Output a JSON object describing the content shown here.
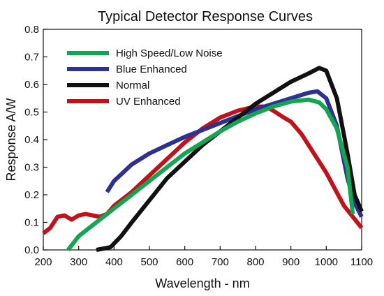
{
  "chart_data": {
    "type": "line",
    "title": "Typical Detector Response Curves",
    "xlabel": "Wavelength - nm",
    "ylabel": "Response A/W",
    "xlim": [
      200,
      1100
    ],
    "ylim": [
      0,
      0.8
    ],
    "xticks": [
      200,
      300,
      400,
      500,
      600,
      700,
      800,
      900,
      1000,
      1100
    ],
    "yticks": [
      "0.0",
      "0.1",
      "0.2",
      "0.3",
      "0.4",
      "0.5",
      "0.6",
      "0.7",
      "0.8"
    ],
    "grid": false,
    "legend_position": "top-left",
    "series": [
      {
        "name": "High Speed/Low Noise",
        "color": "#13a552",
        "points": [
          [
            270,
            0.0
          ],
          [
            300,
            0.05
          ],
          [
            350,
            0.1
          ],
          [
            400,
            0.15
          ],
          [
            450,
            0.2
          ],
          [
            500,
            0.25
          ],
          [
            550,
            0.3
          ],
          [
            600,
            0.35
          ],
          [
            650,
            0.39
          ],
          [
            700,
            0.43
          ],
          [
            750,
            0.465
          ],
          [
            800,
            0.495
          ],
          [
            850,
            0.52
          ],
          [
            900,
            0.538
          ],
          [
            950,
            0.545
          ],
          [
            980,
            0.535
          ],
          [
            1000,
            0.51
          ],
          [
            1030,
            0.44
          ],
          [
            1060,
            0.3
          ],
          [
            1075,
            0.13
          ]
        ]
      },
      {
        "name": "Blue Enhanced",
        "color": "#2e3192",
        "points": [
          [
            380,
            0.21
          ],
          [
            400,
            0.25
          ],
          [
            450,
            0.31
          ],
          [
            500,
            0.35
          ],
          [
            550,
            0.38
          ],
          [
            600,
            0.41
          ],
          [
            650,
            0.435
          ],
          [
            700,
            0.46
          ],
          [
            750,
            0.485
          ],
          [
            800,
            0.51
          ],
          [
            850,
            0.53
          ],
          [
            900,
            0.55
          ],
          [
            950,
            0.57
          ],
          [
            975,
            0.575
          ],
          [
            1000,
            0.55
          ],
          [
            1030,
            0.45
          ],
          [
            1060,
            0.26
          ],
          [
            1080,
            0.17
          ],
          [
            1100,
            0.12
          ]
        ]
      },
      {
        "name": "Normal",
        "color": "#111111",
        "points": [
          [
            350,
            0.0
          ],
          [
            390,
            0.01
          ],
          [
            420,
            0.05
          ],
          [
            450,
            0.1
          ],
          [
            500,
            0.18
          ],
          [
            550,
            0.26
          ],
          [
            600,
            0.32
          ],
          [
            650,
            0.38
          ],
          [
            700,
            0.43
          ],
          [
            750,
            0.48
          ],
          [
            800,
            0.53
          ],
          [
            850,
            0.57
          ],
          [
            900,
            0.61
          ],
          [
            950,
            0.64
          ],
          [
            980,
            0.66
          ],
          [
            1000,
            0.65
          ],
          [
            1030,
            0.55
          ],
          [
            1060,
            0.35
          ],
          [
            1080,
            0.2
          ],
          [
            1100,
            0.14
          ]
        ]
      },
      {
        "name": "UV Enhanced",
        "color": "#c1121c",
        "points": [
          [
            200,
            0.06
          ],
          [
            220,
            0.08
          ],
          [
            240,
            0.12
          ],
          [
            260,
            0.125
          ],
          [
            280,
            0.11
          ],
          [
            300,
            0.125
          ],
          [
            320,
            0.13
          ],
          [
            340,
            0.125
          ],
          [
            360,
            0.12
          ],
          [
            380,
            0.13
          ],
          [
            400,
            0.16
          ],
          [
            450,
            0.21
          ],
          [
            500,
            0.27
          ],
          [
            550,
            0.33
          ],
          [
            600,
            0.39
          ],
          [
            650,
            0.44
          ],
          [
            700,
            0.48
          ],
          [
            750,
            0.505
          ],
          [
            800,
            0.52
          ],
          [
            830,
            0.52
          ],
          [
            850,
            0.505
          ],
          [
            880,
            0.48
          ],
          [
            900,
            0.465
          ],
          [
            930,
            0.42
          ],
          [
            950,
            0.38
          ],
          [
            1000,
            0.28
          ],
          [
            1050,
            0.16
          ],
          [
            1100,
            0.08
          ]
        ]
      }
    ]
  }
}
